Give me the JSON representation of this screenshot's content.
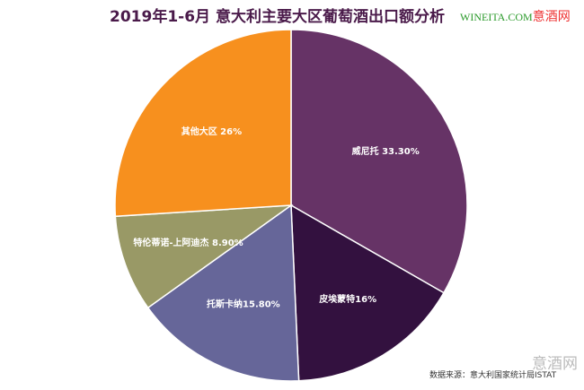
{
  "title": "2019年1-6月 意大利主要大区葡萄酒出口额分析",
  "brand": {
    "site": "WINEITA.COM",
    "name": "意酒网"
  },
  "watermark": "意酒网",
  "source": "数据来源：意大利国家统计局ISTAT",
  "chart_data": {
    "type": "pie",
    "title": "2019年1-6月 意大利主要大区葡萄酒出口额分析",
    "slices": [
      {
        "name": "威尼托",
        "value": 33.3,
        "label": "威尼托 33.30%",
        "color": "#663366"
      },
      {
        "name": "皮埃蒙特",
        "value": 16,
        "label": "皮埃蒙特16%",
        "color": "#33113f"
      },
      {
        "name": "托斯卡纳",
        "value": 15.8,
        "label": "托斯卡纳15.80%",
        "color": "#666699"
      },
      {
        "name": "特伦蒂诺-上阿迪杰",
        "value": 8.9,
        "label": "特伦蒂诺-上阿迪杰 8.90%",
        "color": "#999966"
      },
      {
        "name": "其他大区",
        "value": 26,
        "label": "其他大区 26%",
        "color": "#f7901e"
      }
    ]
  }
}
